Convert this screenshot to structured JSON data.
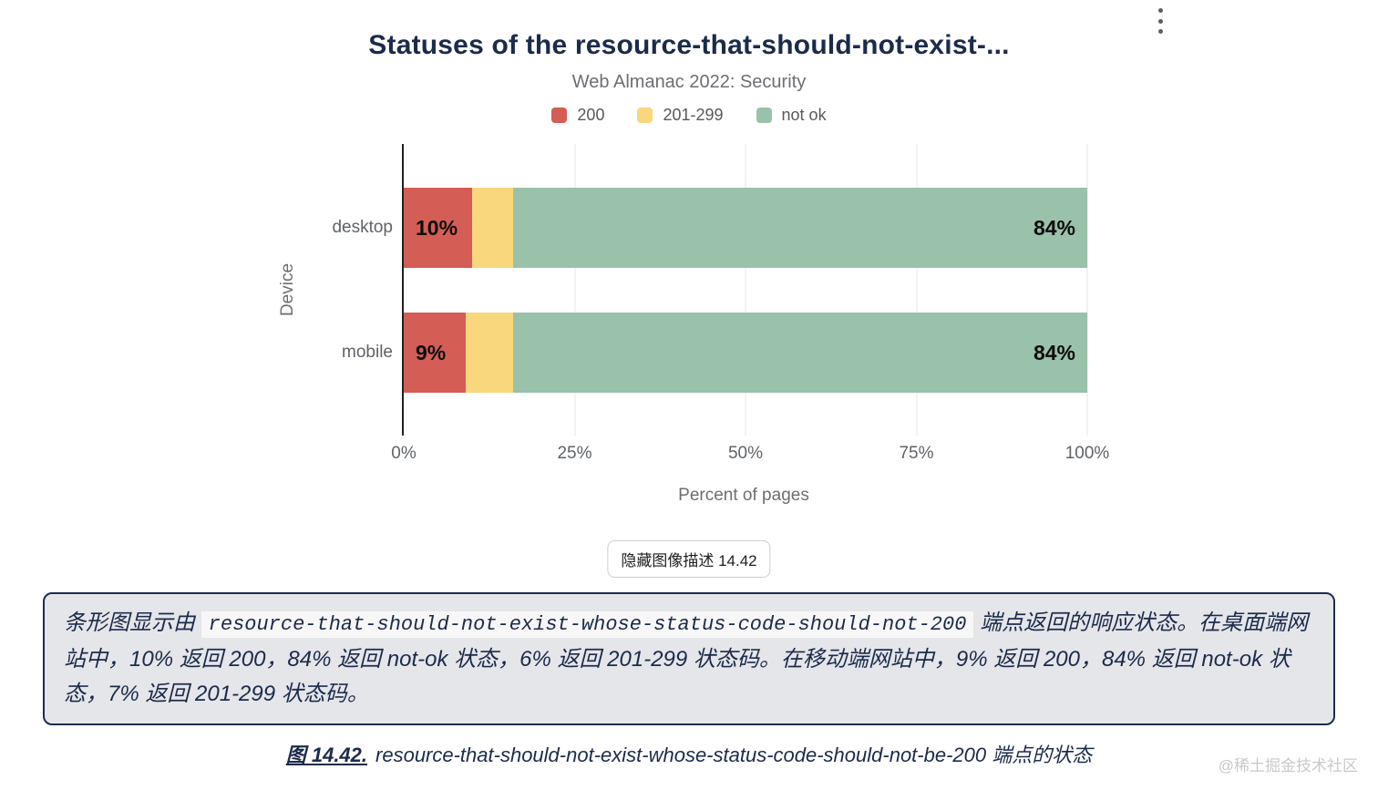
{
  "menu": {
    "icon": "kebab-menu"
  },
  "chart_data": {
    "type": "bar",
    "orientation": "horizontal",
    "stacked": true,
    "title": "Statuses of the resource-that-should-not-exist-...",
    "subtitle": "Web Almanac 2022: Security",
    "categories": [
      "desktop",
      "mobile"
    ],
    "series": [
      {
        "name": "200",
        "color": "#d45d55",
        "values": [
          10,
          9
        ],
        "bar_labels": [
          "10%",
          "9%"
        ]
      },
      {
        "name": "201-299",
        "color": "#f8d77d",
        "values": [
          6,
          7
        ],
        "bar_labels": [
          "",
          ""
        ]
      },
      {
        "name": "not ok",
        "color": "#9ac1a9",
        "values": [
          84,
          84
        ],
        "bar_labels": [
          "84%",
          "84%"
        ]
      }
    ],
    "xlabel": "Percent of pages",
    "ylabel": "Device",
    "xlim": [
      0,
      100
    ],
    "xticks": [
      "0%",
      "25%",
      "50%",
      "75%",
      "100%"
    ],
    "grid": true,
    "legend_position": "top"
  },
  "toggle_button": {
    "label": "隐藏图像描述 14.42"
  },
  "description": {
    "prefix": "条形图显示由 ",
    "code": "resource-that-should-not-exist-whose-status-code-should-not-200",
    "suffix": " 端点返回的响应状态。在桌面端网站中，10% 返回 200，84% 返回 not-ok 状态，6% 返回 201-299 状态码。在移动端网站中，9% 返回 200，84% 返回 not-ok 状态，7% 返回 201-299 状态码。"
  },
  "caption": {
    "figure_label": "图 14.42.",
    "text": "resource-that-should-not-exist-whose-status-code-should-not-be-200 端点的状态"
  },
  "watermark": "@稀土掘金技术社区"
}
